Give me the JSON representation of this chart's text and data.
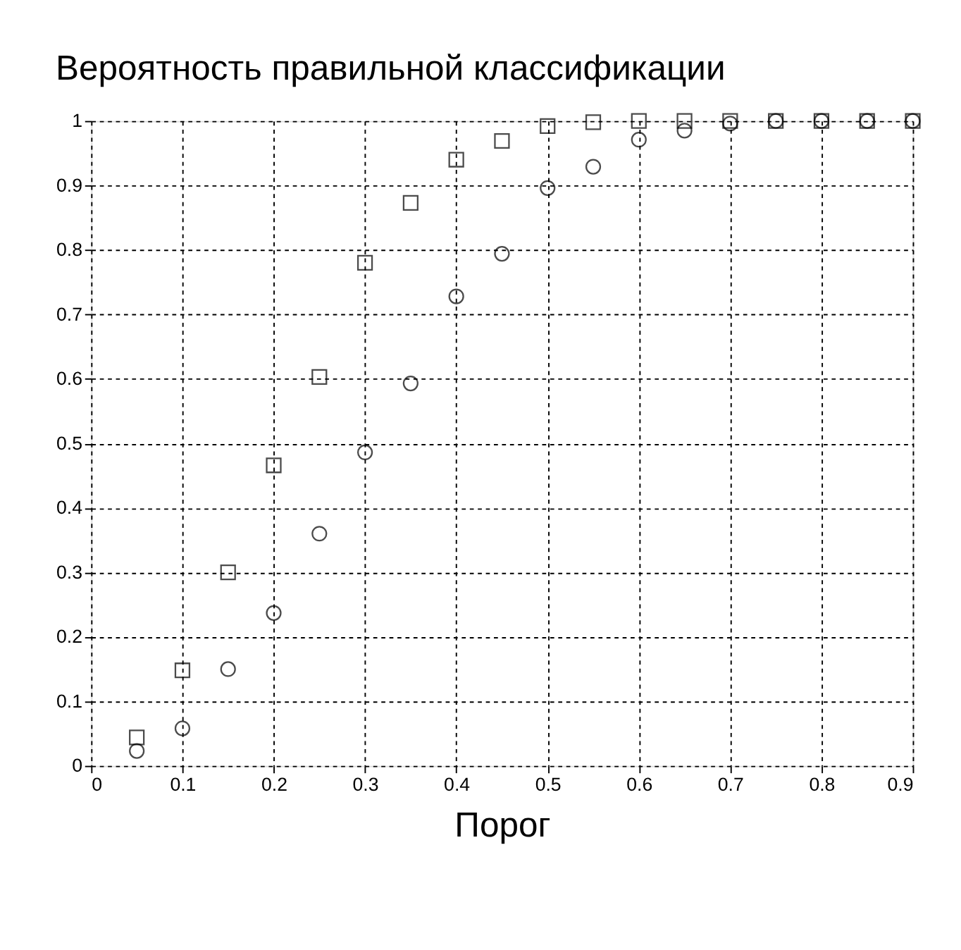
{
  "chart_data": {
    "type": "scatter",
    "title": "Вероятность правильной классификации",
    "xlabel": "Порог",
    "x": [
      0.05,
      0.1,
      0.15,
      0.2,
      0.25,
      0.3,
      0.35,
      0.4,
      0.45,
      0.5,
      0.55,
      0.6,
      0.65,
      0.7,
      0.75,
      0.8,
      0.85,
      0.9
    ],
    "series": [
      {
        "color": "#000000",
        "marker": "square",
        "values": [
          0.044,
          0.148,
          0.3,
          0.466,
          0.603,
          0.78,
          0.873,
          0.94,
          0.969,
          0.992,
          0.998,
          1,
          1,
          1,
          1,
          1,
          1,
          1
        ]
      },
      {
        "color": "#000000",
        "marker": "circle",
        "values": [
          0.023,
          0.058,
          0.15,
          0.237,
          0.36,
          0.486,
          0.593,
          0.728,
          0.794,
          0.896,
          0.929,
          0.971,
          0.985,
          0.996,
          1,
          1,
          1,
          1
        ]
      }
    ],
    "xlim": [
      0,
      0.9
    ],
    "ylim": [
      0,
      1
    ],
    "xticks": [
      0,
      0.1,
      0.2,
      0.3,
      0.4,
      0.5,
      0.6,
      0.7,
      0.8,
      0.9
    ],
    "yticks": [
      0,
      0.1,
      0.2,
      0.3,
      0.4,
      0.5,
      0.6,
      0.7,
      0.8,
      0.9,
      1
    ],
    "grid": true
  }
}
